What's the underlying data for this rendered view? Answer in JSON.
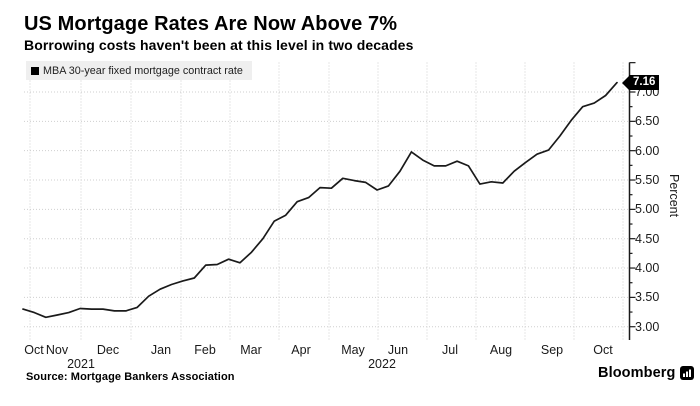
{
  "header": {
    "title": "US Mortgage Rates Are Now Above 7%",
    "subtitle": "Borrowing costs haven't been at this level in two decades"
  },
  "legend": {
    "label": "MBA 30-year fixed mortgage contract rate",
    "swatch_color": "#000000"
  },
  "chart_data": {
    "type": "line",
    "title": "US Mortgage Rates Are Now Above 7%",
    "subtitle": "Borrowing costs haven't been at this level in two decades",
    "ylabel": "Percent",
    "xlabel": "",
    "x_unit": "weekly",
    "x_range": [
      "Oct 2021",
      "Oct 2022"
    ],
    "ylim_labeled": [
      3.0,
      7.0
    ],
    "y_tick_labels": [
      "7.00",
      "6.50",
      "6.00",
      "5.50",
      "5.00",
      "4.50",
      "4.00",
      "3.50",
      "3.00"
    ],
    "y_minor_tick_step": 0.25,
    "x_tick_labels": [
      "Oct",
      "Nov",
      "Dec",
      "Jan",
      "Feb",
      "Mar",
      "Apr",
      "May",
      "Jun",
      "Jul",
      "Aug",
      "Sep",
      "Oct"
    ],
    "year_labels": [
      "2021",
      "2022"
    ],
    "grid": "dotted",
    "legend_position": "top-left",
    "y_axis_side": "right",
    "end_point_label": "7.16",
    "series": [
      {
        "name": "MBA 30-year fixed mortgage contract rate",
        "color": "#1a1a1a",
        "values": [
          3.3,
          3.24,
          3.16,
          3.2,
          3.24,
          3.31,
          3.3,
          3.3,
          3.27,
          3.27,
          3.33,
          3.52,
          3.64,
          3.72,
          3.78,
          3.83,
          4.05,
          4.06,
          4.15,
          4.09,
          4.27,
          4.5,
          4.8,
          4.9,
          5.13,
          5.2,
          5.37,
          5.36,
          5.53,
          5.49,
          5.46,
          5.33,
          5.4,
          5.65,
          5.98,
          5.84,
          5.74,
          5.74,
          5.82,
          5.74,
          5.43,
          5.47,
          5.45,
          5.65,
          5.8,
          5.94,
          6.01,
          6.25,
          6.52,
          6.75,
          6.81,
          6.94,
          7.16
        ]
      }
    ]
  },
  "footer": {
    "source": "Source: Mortgage Bankers Association",
    "brand": "Bloomberg"
  }
}
